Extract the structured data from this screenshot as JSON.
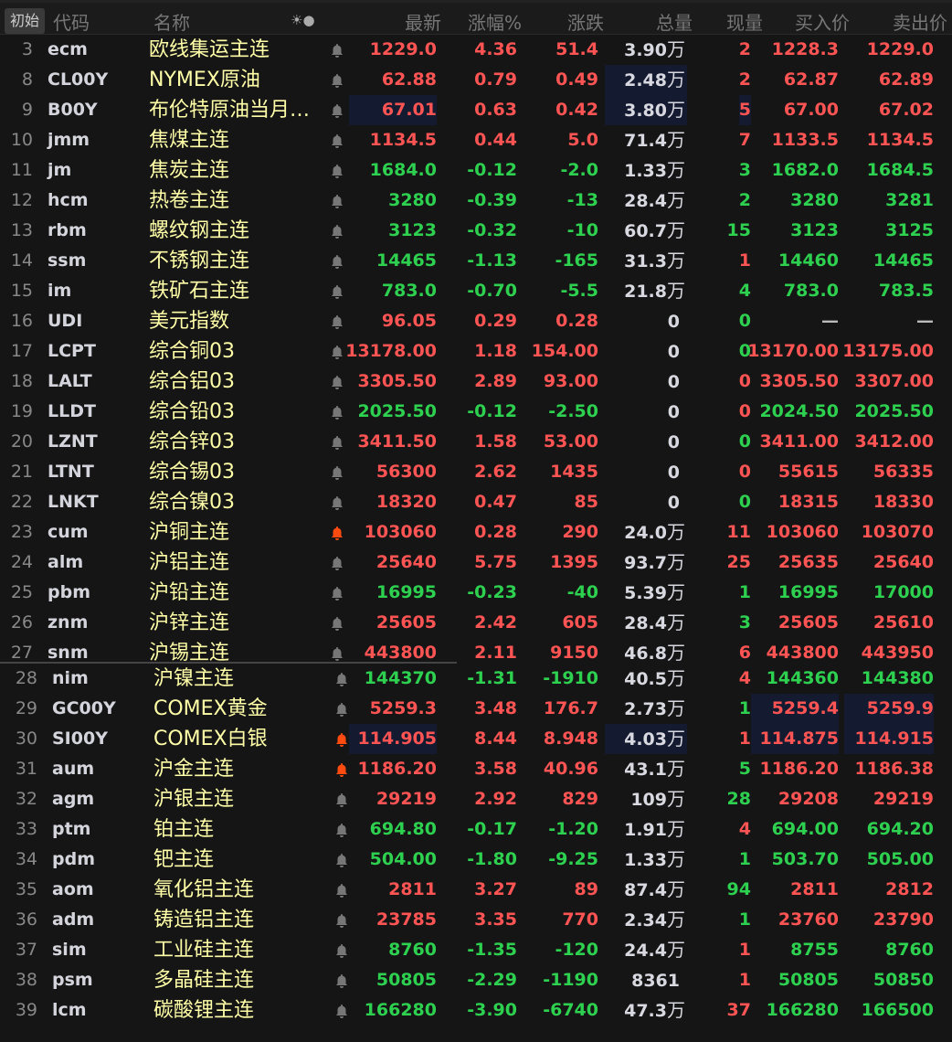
{
  "header": {
    "init": "初始",
    "cols": [
      "代码",
      "名称",
      "☀●",
      "最新",
      "涨幅%",
      "涨跌",
      "总量",
      "现量",
      "买入价",
      "卖出价"
    ]
  },
  "rows": [
    [
      "3",
      "ecm",
      "欧线集运主连",
      "off",
      "1229.0",
      "4.36",
      "51.4",
      "3.90",
      "万",
      "2",
      "1228.3",
      "1229.0",
      "r",
      "r",
      []
    ],
    [
      "8",
      "CL00Y",
      "NYMEX原油",
      "off",
      "62.88",
      "0.79",
      "0.49",
      "2.48",
      "万",
      "2",
      "62.87",
      "62.89",
      "r",
      "r",
      [
        "vol"
      ]
    ],
    [
      "9",
      "B00Y",
      "布伦特原油当月…",
      "off",
      "67.01",
      "0.63",
      "0.42",
      "3.80",
      "万",
      "5",
      "67.00",
      "67.02",
      "r",
      "r",
      [
        "last",
        "vol",
        "cur"
      ]
    ],
    [
      "10",
      "jmm",
      "焦煤主连",
      "off",
      "1134.5",
      "0.44",
      "5.0",
      "71.4",
      "万",
      "7",
      "1133.5",
      "1134.5",
      "r",
      "r",
      []
    ],
    [
      "11",
      "jm",
      "焦炭主连",
      "off",
      "1684.0",
      "-0.12",
      "-2.0",
      "1.33",
      "万",
      "3",
      "1682.0",
      "1684.5",
      "g",
      "g",
      []
    ],
    [
      "12",
      "hcm",
      "热卷主连",
      "off",
      "3280",
      "-0.39",
      "-13",
      "28.4",
      "万",
      "2",
      "3280",
      "3281",
      "g",
      "g",
      []
    ],
    [
      "13",
      "rbm",
      "螺纹钢主连",
      "off",
      "3123",
      "-0.32",
      "-10",
      "60.7",
      "万",
      "15",
      "3123",
      "3125",
      "g",
      "g",
      []
    ],
    [
      "14",
      "ssm",
      "不锈钢主连",
      "off",
      "14465",
      "-1.13",
      "-165",
      "31.3",
      "万",
      "1",
      "14460",
      "14465",
      "g",
      "r",
      []
    ],
    [
      "15",
      "im",
      "铁矿石主连",
      "off",
      "783.0",
      "-0.70",
      "-5.5",
      "21.8",
      "万",
      "4",
      "783.0",
      "783.5",
      "g",
      "g",
      []
    ],
    [
      "16",
      "UDI",
      "美元指数",
      "off",
      "96.05",
      "0.29",
      "0.28",
      "0",
      "",
      "0",
      "—",
      "—",
      "r",
      "g",
      []
    ],
    [
      "17",
      "LCPT",
      "综合铜03",
      "off",
      "13178.00",
      "1.18",
      "154.00",
      "0",
      "",
      "0",
      "13170.00",
      "13175.00",
      "r",
      "g",
      []
    ],
    [
      "18",
      "LALT",
      "综合铝03",
      "off",
      "3305.50",
      "2.89",
      "93.00",
      "0",
      "",
      "0",
      "3305.50",
      "3307.00",
      "r",
      "r",
      []
    ],
    [
      "19",
      "LLDT",
      "综合铅03",
      "off",
      "2025.50",
      "-0.12",
      "-2.50",
      "0",
      "",
      "0",
      "2024.50",
      "2025.50",
      "g",
      "r",
      []
    ],
    [
      "20",
      "LZNT",
      "综合锌03",
      "off",
      "3411.50",
      "1.58",
      "53.00",
      "0",
      "",
      "0",
      "3411.00",
      "3412.00",
      "r",
      "g",
      []
    ],
    [
      "21",
      "LTNT",
      "综合锡03",
      "off",
      "56300",
      "2.62",
      "1435",
      "0",
      "",
      "0",
      "55615",
      "56335",
      "r",
      "r",
      []
    ],
    [
      "22",
      "LNKT",
      "综合镍03",
      "off",
      "18320",
      "0.47",
      "85",
      "0",
      "",
      "0",
      "18315",
      "18330",
      "r",
      "g",
      []
    ],
    [
      "23",
      "cum",
      "沪铜主连",
      "on",
      "103060",
      "0.28",
      "290",
      "24.0",
      "万",
      "11",
      "103060",
      "103070",
      "r",
      "r",
      []
    ],
    [
      "24",
      "alm",
      "沪铝主连",
      "off",
      "25640",
      "5.75",
      "1395",
      "93.7",
      "万",
      "25",
      "25635",
      "25640",
      "r",
      "r",
      []
    ],
    [
      "25",
      "pbm",
      "沪铅主连",
      "off",
      "16995",
      "-0.23",
      "-40",
      "5.39",
      "万",
      "1",
      "16995",
      "17000",
      "g",
      "g",
      []
    ],
    [
      "26",
      "znm",
      "沪锌主连",
      "off",
      "25605",
      "2.42",
      "605",
      "28.4",
      "万",
      "3",
      "25605",
      "25610",
      "r",
      "g",
      []
    ],
    [
      "27",
      "snm",
      "沪锡主连",
      "off",
      "443800",
      "2.11",
      "9150",
      "46.8",
      "万",
      "6",
      "443800",
      "443950",
      "r",
      "r",
      []
    ],
    [
      "28",
      "nim",
      "沪镍主连",
      "off",
      "144370",
      "-1.31",
      "-1910",
      "40.5",
      "万",
      "4",
      "144360",
      "144380",
      "g",
      "r",
      []
    ],
    [
      "29",
      "GC00Y",
      "COMEX黄金",
      "off",
      "5259.3",
      "3.48",
      "176.7",
      "2.73",
      "万",
      "1",
      "5259.4",
      "5259.9",
      "r",
      "g",
      [
        "bid",
        "ask"
      ]
    ],
    [
      "30",
      "SI00Y",
      "COMEX白银",
      "on",
      "114.905",
      "8.44",
      "8.948",
      "4.03",
      "万",
      "1",
      "114.875",
      "114.915",
      "r",
      "r",
      [
        "last",
        "vol",
        "bid",
        "ask"
      ]
    ],
    [
      "31",
      "aum",
      "沪金主连",
      "on",
      "1186.20",
      "3.58",
      "40.96",
      "43.1",
      "万",
      "5",
      "1186.20",
      "1186.38",
      "r",
      "g",
      []
    ],
    [
      "32",
      "agm",
      "沪银主连",
      "off",
      "29219",
      "2.92",
      "829",
      "109",
      "万",
      "28",
      "29208",
      "29219",
      "r",
      "g",
      []
    ],
    [
      "33",
      "ptm",
      "铂主连",
      "off",
      "694.80",
      "-0.17",
      "-1.20",
      "1.91",
      "万",
      "4",
      "694.00",
      "694.20",
      "g",
      "r",
      []
    ],
    [
      "34",
      "pdm",
      "钯主连",
      "off",
      "504.00",
      "-1.80",
      "-9.25",
      "1.33",
      "万",
      "1",
      "503.70",
      "505.00",
      "g",
      "g",
      []
    ],
    [
      "35",
      "aom",
      "氧化铝主连",
      "off",
      "2811",
      "3.27",
      "89",
      "87.4",
      "万",
      "94",
      "2811",
      "2812",
      "r",
      "g",
      []
    ],
    [
      "36",
      "adm",
      "铸造铝主连",
      "off",
      "23785",
      "3.35",
      "770",
      "2.34",
      "万",
      "1",
      "23760",
      "23790",
      "r",
      "g",
      []
    ],
    [
      "37",
      "sim",
      "工业硅主连",
      "off",
      "8760",
      "-1.35",
      "-120",
      "24.4",
      "万",
      "1",
      "8755",
      "8760",
      "g",
      "r",
      []
    ],
    [
      "38",
      "psm",
      "多晶硅主连",
      "off",
      "50805",
      "-2.29",
      "-1190",
      "8361",
      "",
      "1",
      "50805",
      "50850",
      "g",
      "r",
      []
    ],
    [
      "39",
      "lcm",
      "碳酸锂主连",
      "off",
      "166280",
      "-3.90",
      "-6740",
      "47.3",
      "万",
      "37",
      "166280",
      "166500",
      "g",
      "r",
      []
    ]
  ],
  "colors": {
    "up": "#ff5454",
    "down": "#2ed050",
    "name": "#ffffa8",
    "alert": "#ff4a10"
  }
}
